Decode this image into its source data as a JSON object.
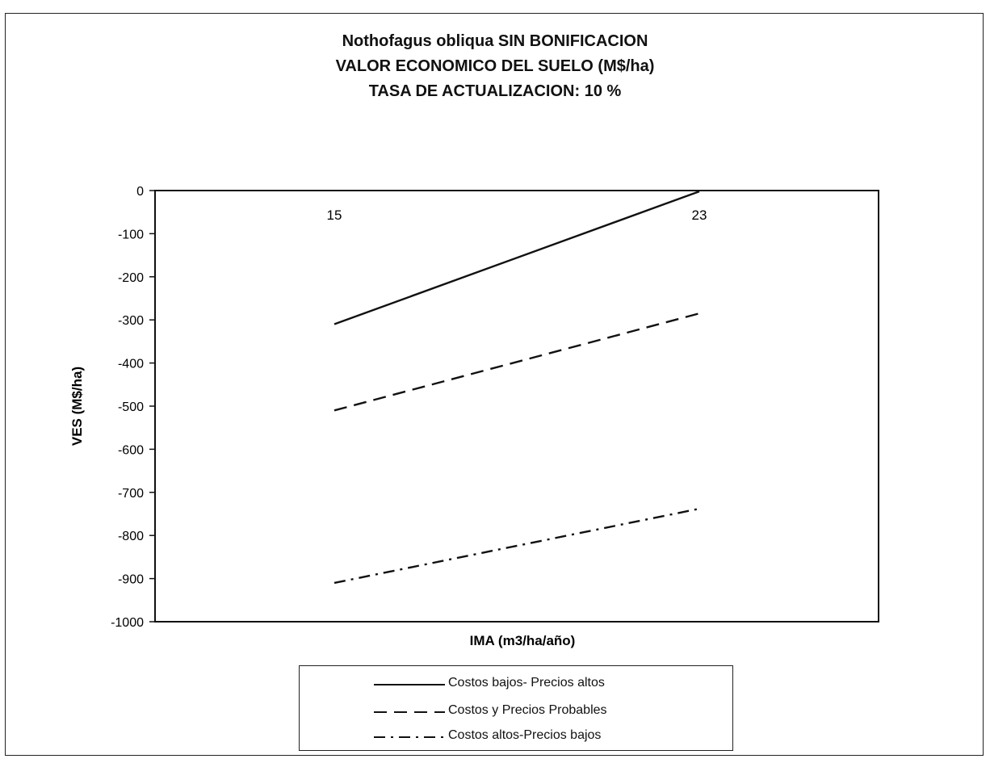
{
  "chart_data": {
    "type": "line",
    "title": [
      "Nothofagus obliqua SIN BONIFICACION",
      "VALOR ECONOMICO DEL SUELO (M$/ha)",
      "TASA DE ACTUALIZACION: 10 %"
    ],
    "xlabel": "IMA (m3/ha/año)",
    "ylabel": "VES (M$/ha)",
    "x": [
      15,
      23
    ],
    "x_tick_labels": [
      "15",
      "23"
    ],
    "ylim": [
      -1000,
      0
    ],
    "y_ticks": [
      0,
      -100,
      -200,
      -300,
      -400,
      -500,
      -600,
      -700,
      -800,
      -900,
      -1000
    ],
    "y_tick_labels": [
      "0",
      "-100",
      "-200",
      "-300",
      "-400",
      "-500",
      "-600",
      "-700",
      "-800",
      "-900",
      "-1000"
    ],
    "grid": false,
    "legend_position": "bottom",
    "series": [
      {
        "name": "Costos bajos- Precios altos",
        "values": [
          -310,
          -2
        ],
        "style": "solid",
        "color": "#111111"
      },
      {
        "name": "Costos y Precios Probables",
        "values": [
          -510,
          -285
        ],
        "style": "dashed",
        "color": "#111111"
      },
      {
        "name": "Costos altos-Precios bajos",
        "values": [
          -910,
          -738
        ],
        "style": "dashdot",
        "color": "#111111"
      }
    ]
  }
}
